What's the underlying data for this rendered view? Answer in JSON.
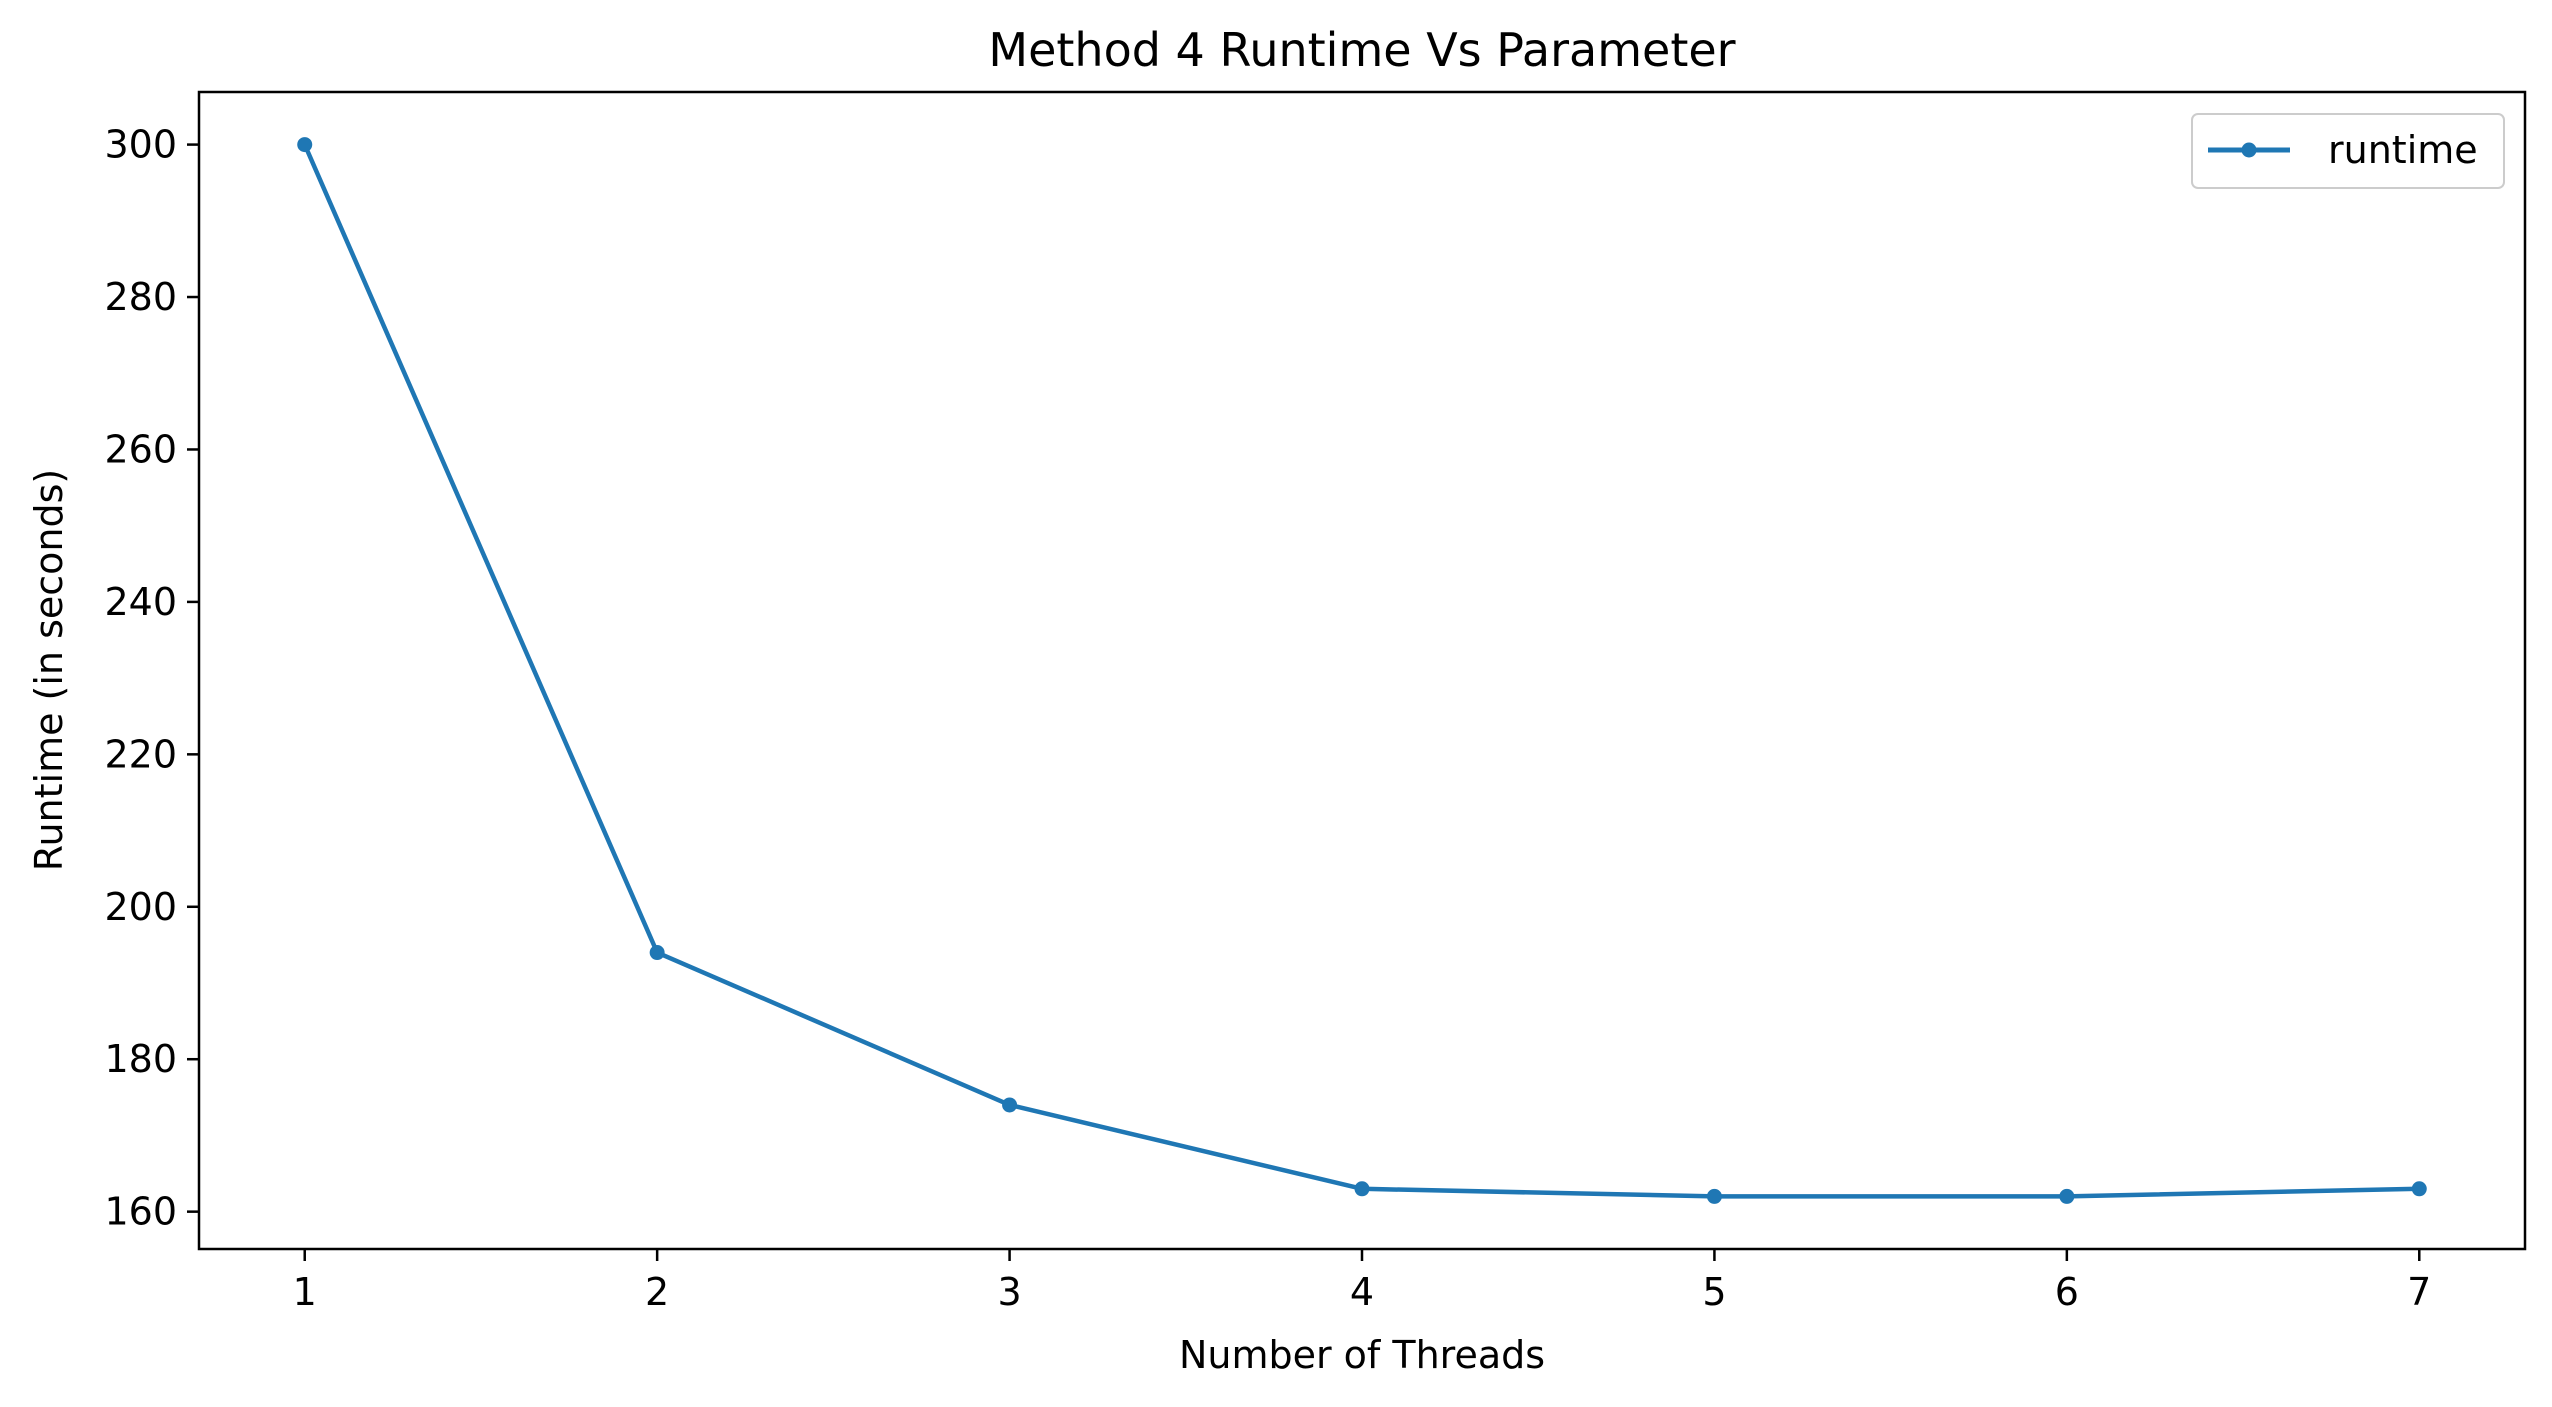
{
  "chart_data": {
    "type": "line",
    "title": "Method 4 Runtime Vs Parameter",
    "xlabel": "Number of Threads",
    "ylabel": "Runtime (in seconds)",
    "x": [
      1,
      2,
      3,
      4,
      5,
      6,
      7
    ],
    "series": [
      {
        "name": "runtime",
        "values": [
          300,
          194,
          174,
          163,
          162,
          162,
          163
        ],
        "color": "#1f77b4",
        "marker": "circle"
      }
    ],
    "xlim": [
      0.7,
      7.3
    ],
    "ylim": [
      155.1,
      306.9
    ],
    "xticks": [
      1,
      2,
      3,
      4,
      5,
      6,
      7
    ],
    "yticks": [
      160,
      180,
      200,
      220,
      240,
      260,
      280,
      300
    ],
    "grid": false,
    "legend": "top-right"
  }
}
